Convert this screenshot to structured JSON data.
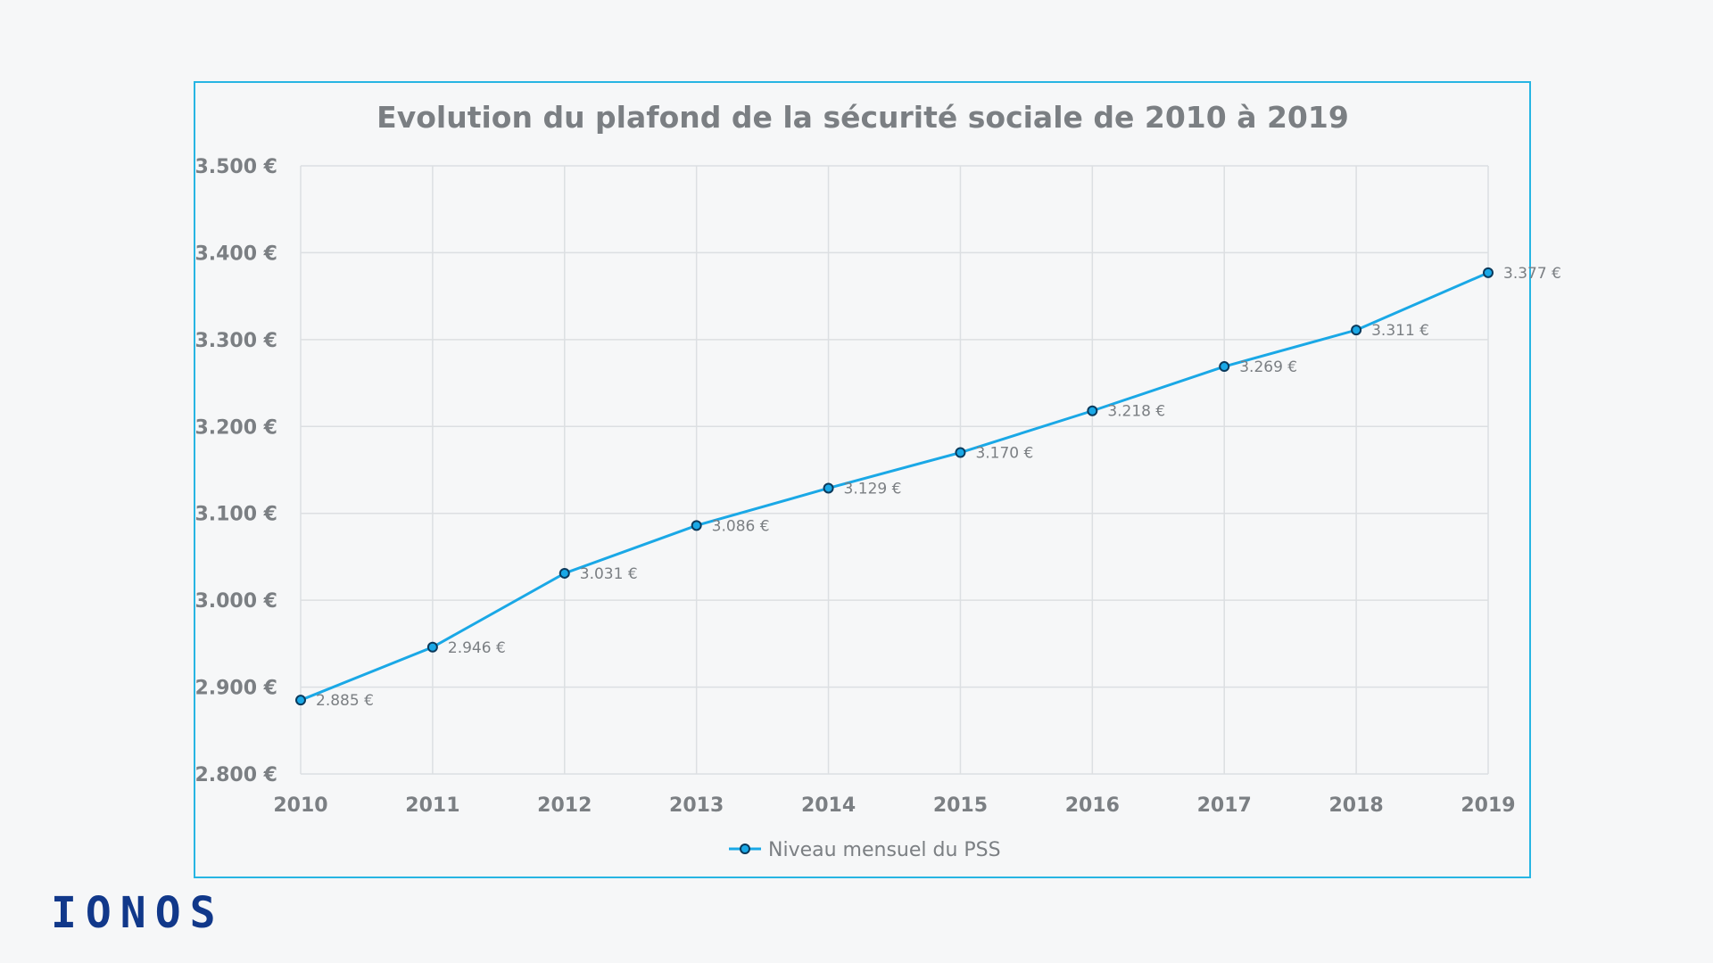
{
  "brand": {
    "logo_text": "IONOS"
  },
  "colors": {
    "frame": "#27b5e3",
    "series": "#1aa8e6",
    "marker_edge": "#0b3a5c",
    "text": "#7b7f83",
    "logo": "#11388a"
  },
  "chart_data": {
    "type": "line",
    "title": "Evolution du plafond de la sécurité sociale de 2010 à 2019",
    "xlabel": "",
    "ylabel": "",
    "categories": [
      "2010",
      "2011",
      "2012",
      "2013",
      "2014",
      "2015",
      "2016",
      "2017",
      "2018",
      "2019"
    ],
    "series": [
      {
        "name": "Niveau mensuel du PSS",
        "values": [
          2885,
          2946,
          3031,
          3086,
          3129,
          3170,
          3218,
          3269,
          3311,
          3377
        ],
        "data_labels": [
          "2.885 €",
          "2.946 €",
          "3.031 €",
          "3.086 €",
          "3.129 €",
          "3.170 €",
          "3.218 €",
          "3.269 €",
          "3.311 €",
          "3.377 €"
        ]
      }
    ],
    "ylim": [
      2800,
      3500
    ],
    "yticks": [
      2800,
      2900,
      3000,
      3100,
      3200,
      3300,
      3400,
      3500
    ],
    "ytick_labels": [
      "2.800 €",
      "2.900 €",
      "3.000 €",
      "3.100 €",
      "3.200 €",
      "3.300 €",
      "3.400 €",
      "3.500 €"
    ],
    "grid": true,
    "legend": "bottom-center"
  }
}
